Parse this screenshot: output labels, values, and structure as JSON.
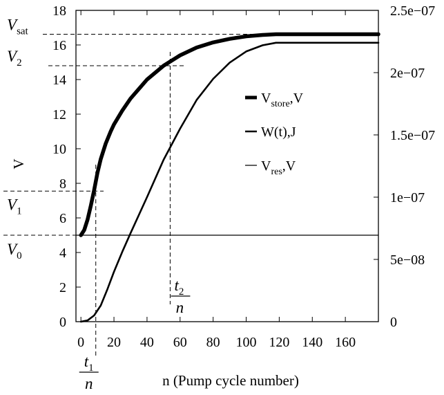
{
  "chart_data": {
    "type": "line",
    "xlabel": "n (Pump cycle number)",
    "ylabel": "V",
    "xlim": [
      -3,
      180
    ],
    "ylim": [
      0,
      18
    ],
    "y2lim": [
      0,
      2.5e-07
    ],
    "x_ticks": [
      0,
      20,
      40,
      60,
      80,
      100,
      120,
      140,
      160
    ],
    "y_ticks": [
      0,
      2,
      4,
      6,
      8,
      10,
      12,
      14,
      16,
      18
    ],
    "y2_ticks": [
      "0",
      "5e−08",
      "1e−07",
      "1.5e−07",
      "2e−07",
      "2.5e−07"
    ],
    "y2_tick_values": [
      0,
      5e-08,
      1e-07,
      1.5e-07,
      2e-07,
      2.5e-07
    ],
    "grid": false,
    "legend_position": "center-right",
    "legend": [
      {
        "main": "V",
        "sub": "store",
        "tail": ",V"
      },
      {
        "main": "W(t),J",
        "sub": "",
        "tail": ""
      },
      {
        "main": "V",
        "sub": "res",
        "tail": ",V"
      }
    ],
    "series": [
      {
        "axis": "left",
        "x": [
          0,
          2,
          4,
          6,
          8,
          10,
          12,
          15,
          18,
          20,
          25,
          30,
          40,
          50,
          60,
          70,
          80,
          90,
          100,
          110,
          118,
          120,
          140,
          160,
          180
        ],
        "y": [
          5.0,
          5.3,
          5.9,
          6.7,
          7.6,
          8.6,
          9.4,
          10.3,
          11.0,
          11.4,
          12.2,
          12.9,
          14.0,
          14.8,
          15.4,
          15.85,
          16.15,
          16.35,
          16.5,
          16.58,
          16.62,
          16.62,
          16.62,
          16.62,
          16.62
        ]
      },
      {
        "axis": "right",
        "x": [
          0,
          4,
          8,
          12,
          16,
          20,
          25,
          30,
          40,
          50,
          60,
          70,
          80,
          90,
          100,
          110,
          118,
          120,
          140,
          160,
          180
        ],
        "y": [
          0,
          1e-09,
          5e-09,
          1.3e-08,
          2.6e-08,
          4e-08,
          5.6e-08,
          7.1e-08,
          1e-07,
          1.3e-07,
          1.55e-07,
          1.78e-07,
          1.95e-07,
          2.08e-07,
          2.17e-07,
          2.22e-07,
          2.24e-07,
          2.24e-07,
          2.24e-07,
          2.24e-07,
          2.24e-07
        ]
      },
      {
        "axis": "left",
        "x": [
          -3,
          180
        ],
        "y": [
          5,
          5
        ]
      }
    ],
    "annotations": {
      "V_sat": {
        "main": "V",
        "sub": "sat",
        "y": 16.62
      },
      "V_2": {
        "main": "V",
        "sub": "2",
        "y": 14.8
      },
      "V_1": {
        "main": "V",
        "sub": "1",
        "y": 7.55
      },
      "V_0": {
        "main": "V",
        "sub": "0",
        "y": 5.0
      },
      "t_1": {
        "num": "t",
        "num_sub": "1",
        "den": "n",
        "x": 9
      },
      "t_2": {
        "num": "t",
        "num_sub": "2",
        "den": "n",
        "x": 54
      }
    }
  }
}
